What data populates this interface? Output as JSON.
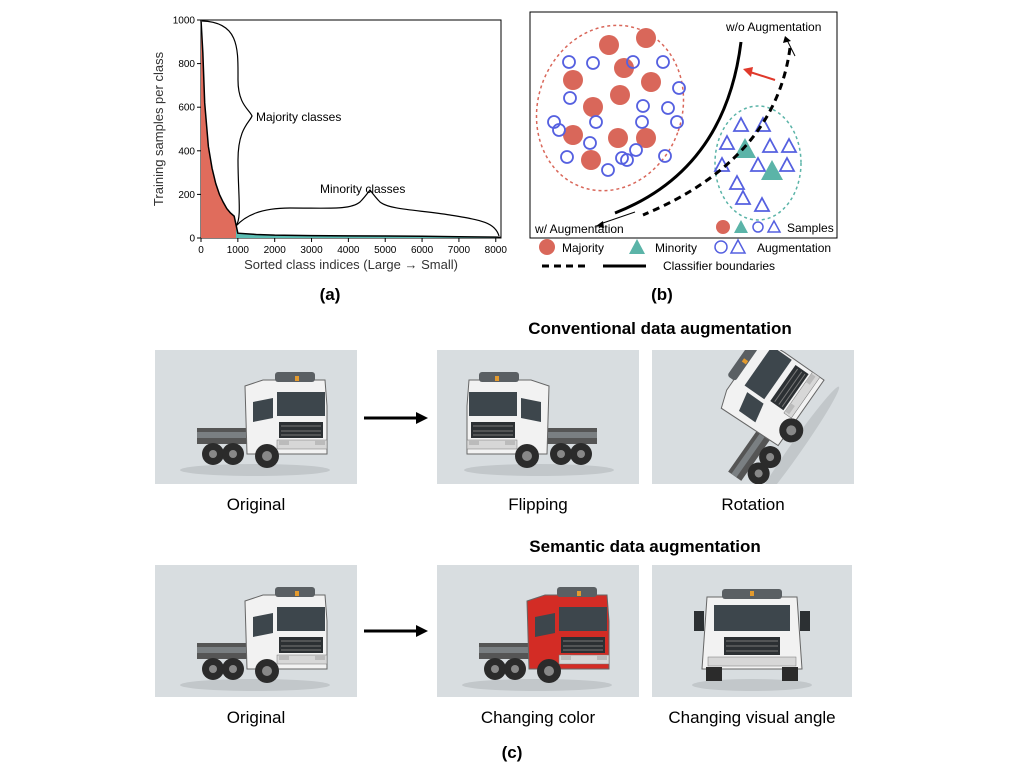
{
  "panel_a": {
    "label": "(a)",
    "chart_data": {
      "type": "area",
      "ylabel": "Training samples per class",
      "xlabel": "Sorted class indices (Large → Small)",
      "xlim": [
        0,
        8142
      ],
      "ylim": [
        0,
        1000
      ],
      "xticks": [
        "0",
        "1000",
        "2000",
        "3000",
        "4000",
        "5000",
        "6000",
        "7000",
        "8000"
      ],
      "yticks": [
        "0",
        "200",
        "400",
        "600",
        "800",
        "1000"
      ],
      "x": [
        0,
        50,
        100,
        200,
        300,
        400,
        500,
        600,
        700,
        800,
        900,
        1000,
        1500,
        2000,
        3000,
        4000,
        5000,
        6000,
        7000,
        8000,
        8142
      ],
      "y": [
        1000,
        850,
        620,
        420,
        320,
        250,
        200,
        165,
        135,
        115,
        100,
        22,
        16,
        13,
        11,
        10,
        9,
        8,
        6,
        4,
        3
      ],
      "series": [
        {
          "name": "Majority classes",
          "color": "#e06c5c",
          "x_range": [
            0,
            950
          ]
        },
        {
          "name": "Minority classes",
          "color": "#5bbdb3",
          "x_range": [
            950,
            8142
          ]
        }
      ],
      "annotations": [
        "Majority classes",
        "Minority classes"
      ]
    }
  },
  "panel_b": {
    "label": "(b)",
    "wo_augmentation": "w/o Augmentation",
    "w_augmentation": "w/ Augmentation",
    "legend": {
      "samples": "Samples",
      "majority": "Majority",
      "minority": "Minority",
      "augmentation": "Augmentation",
      "boundaries": "Classifier boundaries"
    },
    "colors": {
      "majority": "#d9675a",
      "minority": "#5bb4a8",
      "augmentation": "#5560e0",
      "arrow": "#e0392b"
    }
  },
  "panel_c": {
    "label": "(c)",
    "conventional_title": "Conventional data augmentation",
    "semantic_title": "Semantic data augmentation",
    "row1_captions": [
      "Original",
      "Flipping",
      "Rotation"
    ],
    "row2_captions": [
      "Original",
      "Changing color",
      "Changing visual angle"
    ],
    "image_bg": "#d8dde0",
    "truck_cab_color": "#ffffff",
    "truck_red": "#d32c25"
  }
}
